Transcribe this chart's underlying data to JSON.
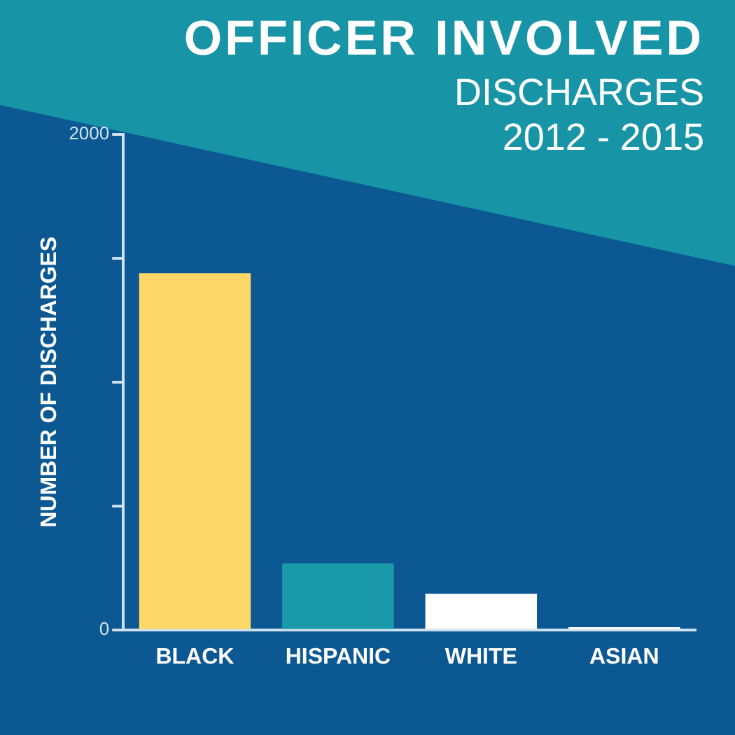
{
  "chart_data": {
    "type": "bar",
    "title": "OFFICER INVOLVED",
    "subtitle": "DISCHARGES",
    "annotations": [
      "2012 - 2015"
    ],
    "ylabel": "NUMBER OF DISCHARGES",
    "categories": [
      "BLACK",
      "HISPANIC",
      "WHITE",
      "ASIAN"
    ],
    "values": [
      1440,
      268,
      145,
      10
    ],
    "colors": [
      "#fdd768",
      "#1a9aa8",
      "#ffffff",
      "#ffffff"
    ],
    "ylim": [
      0,
      2000
    ],
    "yticks": [
      0,
      {
        "value": 500,
        "label": null
      },
      {
        "value": 1000,
        "label": null
      },
      {
        "value": 1500,
        "label": null
      },
      2000
    ],
    "grid": false,
    "legend": false
  }
}
